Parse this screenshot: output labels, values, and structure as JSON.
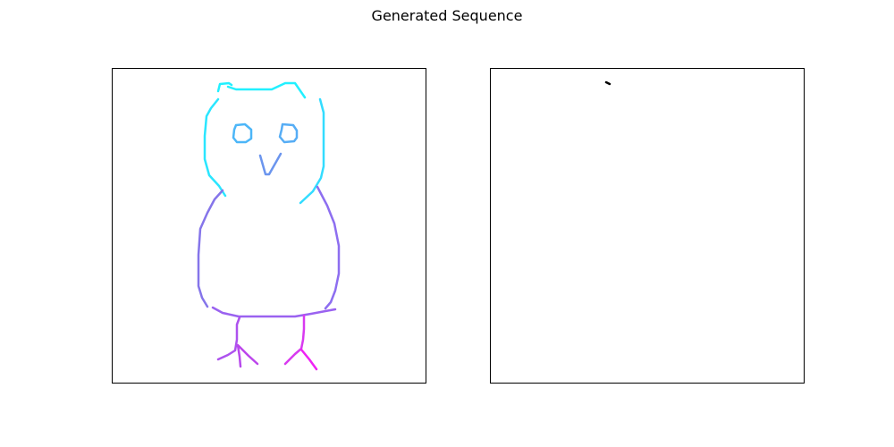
{
  "figure": {
    "title": "Generated Sequence"
  },
  "panels": [
    {
      "id": "left",
      "description": "owl sketch",
      "strokes": [
        {
          "name": "head-tuft-left",
          "color": "#22f0ff",
          "points": [
            [
              244,
              102
            ],
            [
              246,
              94
            ],
            [
              256,
              93
            ],
            [
              259,
              95
            ]
          ]
        },
        {
          "name": "head-top",
          "color": "#22f0ff",
          "points": [
            [
              255,
              97
            ],
            [
              264,
              100
            ],
            [
              281,
              100
            ],
            [
              304,
              100
            ],
            [
              319,
              93
            ],
            [
              330,
              93
            ],
            [
              341,
              109
            ]
          ]
        },
        {
          "name": "head-left-side",
          "color": "#2ae6ff",
          "points": [
            [
              244,
              111
            ],
            [
              236,
              121
            ],
            [
              231,
              130
            ],
            [
              229,
              152
            ],
            [
              229,
              178
            ],
            [
              234,
              196
            ],
            [
              245,
              208
            ],
            [
              252,
              219
            ]
          ]
        },
        {
          "name": "head-right-side",
          "color": "#33dcff",
          "points": [
            [
              358,
              111
            ],
            [
              362,
              126
            ],
            [
              362,
              160
            ],
            [
              362,
              186
            ],
            [
              359,
              199
            ],
            [
              350,
              214
            ],
            [
              336,
              227
            ]
          ]
        },
        {
          "name": "eye-left",
          "color": "#4cb6f8",
          "points": [
            [
              264,
              140
            ],
            [
              274,
              139
            ],
            [
              281,
              145
            ],
            [
              281,
              155
            ],
            [
              275,
              159
            ],
            [
              265,
              159
            ],
            [
              261,
              154
            ],
            [
              262,
              145
            ],
            [
              264,
              140
            ]
          ]
        },
        {
          "name": "eye-right",
          "color": "#56adf5",
          "points": [
            [
              316,
              139
            ],
            [
              328,
              140
            ],
            [
              332,
              146
            ],
            [
              332,
              154
            ],
            [
              329,
              158
            ],
            [
              318,
              159
            ],
            [
              313,
              153
            ],
            [
              315,
              145
            ],
            [
              316,
              139
            ]
          ]
        },
        {
          "name": "beak",
          "color": "#6b95ee",
          "points": [
            [
              291,
              174
            ],
            [
              297,
              195
            ],
            [
              301,
              195
            ],
            [
              314,
              172
            ]
          ]
        },
        {
          "name": "body-left",
          "color": "#8575ea",
          "points": [
            [
              249,
              213
            ],
            [
              240,
              223
            ],
            [
              232,
              238
            ],
            [
              224,
              256
            ],
            [
              222,
              285
            ],
            [
              222,
              320
            ],
            [
              226,
              333
            ],
            [
              232,
              343
            ]
          ]
        },
        {
          "name": "body-right",
          "color": "#8d6ef0",
          "points": [
            [
              355,
              209
            ],
            [
              366,
              230
            ],
            [
              374,
              250
            ],
            [
              379,
              275
            ],
            [
              379,
              306
            ],
            [
              375,
              325
            ],
            [
              370,
              338
            ],
            [
              364,
              345
            ]
          ]
        },
        {
          "name": "body-bottom",
          "color": "#9a62f0",
          "points": [
            [
              238,
              344
            ],
            [
              249,
              350
            ],
            [
              267,
              354
            ],
            [
              300,
              354
            ],
            [
              330,
              354
            ],
            [
              348,
              351
            ],
            [
              364,
              348
            ],
            [
              375,
              346
            ]
          ]
        },
        {
          "name": "leg-left",
          "color": "#ad52ee",
          "points": [
            [
              268,
              355
            ],
            [
              265,
              363
            ],
            [
              265,
              380
            ],
            [
              263,
              392
            ],
            [
              255,
              397
            ],
            [
              244,
              402
            ]
          ]
        },
        {
          "name": "toe-left-mid",
          "color": "#b84aec",
          "points": [
            [
              266,
              386
            ],
            [
              268,
              399
            ],
            [
              269,
              410
            ]
          ]
        },
        {
          "name": "toe-left-right",
          "color": "#bc45ec",
          "points": [
            [
              267,
              387
            ],
            [
              278,
              398
            ],
            [
              288,
              407
            ]
          ]
        },
        {
          "name": "leg-right",
          "color": "#d83af0",
          "points": [
            [
              340,
              353
            ],
            [
              340,
              368
            ],
            [
              339,
              380
            ],
            [
              337,
              390
            ],
            [
              330,
              396
            ],
            [
              319,
              407
            ]
          ]
        },
        {
          "name": "toe-right",
          "color": "#ef22f5",
          "points": [
            [
              337,
              391
            ],
            [
              346,
              402
            ],
            [
              354,
              413
            ]
          ]
        }
      ]
    },
    {
      "id": "right",
      "description": "single short stroke",
      "strokes": [
        {
          "name": "short-dash",
          "color": "#000000",
          "points": [
            [
              678,
              92
            ],
            [
              682,
              94
            ]
          ]
        }
      ]
    }
  ]
}
